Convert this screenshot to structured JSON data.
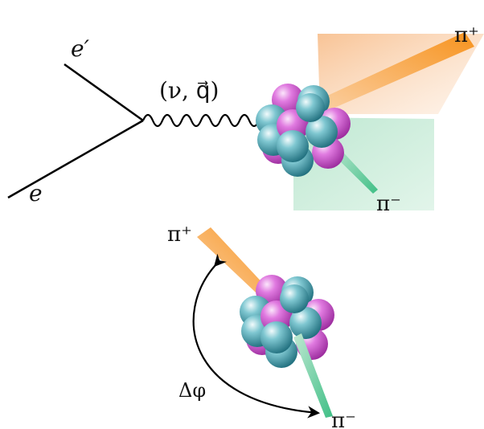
{
  "labels": {
    "e_out": "e′",
    "e_in": "e",
    "photon": "(ν, q⃗)",
    "pi_plus_top": "π⁺",
    "pi_minus_top": "π⁻",
    "pi_plus_bottom": "π⁺",
    "pi_minus_bottom": "π⁻",
    "delta_phi": "Δφ"
  }
}
